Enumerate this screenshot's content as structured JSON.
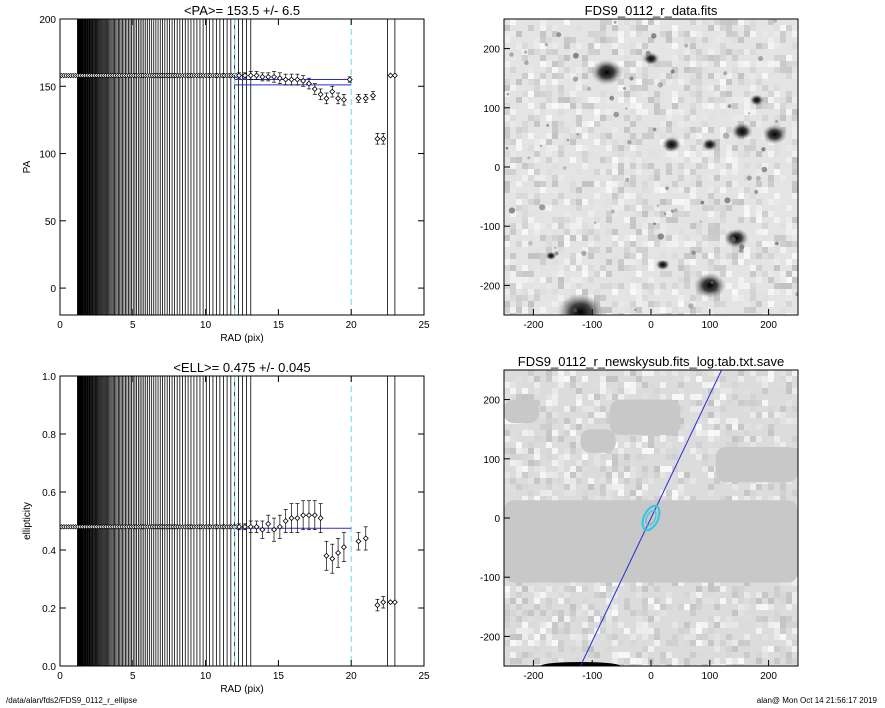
{
  "chart_data": [
    {
      "type": "scatter",
      "title": "<PA>= 153.5 +/-   6.5",
      "xlabel": "RAD (pix)",
      "ylabel": "PA",
      "xlim": [
        0,
        25
      ],
      "ylim": [
        -20,
        200
      ],
      "xticks": [
        "0",
        "5",
        "10",
        "15",
        "20",
        "25"
      ],
      "yticks": [
        "0",
        "50",
        "100",
        "150",
        "200"
      ],
      "vlines_dashed_cyan": [
        12.0,
        20.0
      ],
      "vlines_solid": [
        22.5,
        23.0
      ],
      "fit_line": {
        "x": [
          12.0,
          20.0
        ],
        "y": [
          155,
          155
        ]
      },
      "series": [
        {
          "x": [
            12.3,
            12.7,
            13.1,
            13.5,
            13.9,
            14.3,
            14.7,
            15.1,
            15.5,
            15.9,
            16.3,
            16.7,
            17.1,
            17.5,
            17.9,
            18.3,
            18.7,
            19.1,
            19.5,
            19.9,
            20.5,
            21.0,
            21.5,
            21.8,
            22.2,
            22.7,
            23.0
          ],
          "y": [
            158,
            158,
            158,
            158,
            157,
            157,
            157,
            156,
            155,
            155,
            155,
            154,
            152,
            148,
            144,
            141,
            146,
            141,
            140,
            155,
            141,
            141,
            143,
            111,
            111,
            158,
            158
          ],
          "err": [
            2,
            2,
            3,
            3,
            3,
            3,
            4,
            4,
            4,
            4,
            4,
            4,
            4,
            4,
            4,
            4,
            4,
            4,
            4,
            2,
            3,
            3,
            3,
            4,
            4,
            0,
            0
          ]
        }
      ]
    },
    {
      "type": "scatter",
      "title": "<ELL>= 0.475 +/-  0.045",
      "xlabel": "RAD (pix)",
      "ylabel": "ellipticity",
      "xlim": [
        0,
        25
      ],
      "ylim": [
        0.0,
        1.0
      ],
      "xticks": [
        "0",
        "5",
        "10",
        "15",
        "20",
        "25"
      ],
      "yticks": [
        "0.0",
        "0.2",
        "0.4",
        "0.6",
        "0.8",
        "1.0"
      ],
      "vlines_dashed_cyan": [
        12.0,
        20.0
      ],
      "vlines_solid": [
        22.5,
        23.0
      ],
      "fit_line": {
        "x": [
          12.0,
          20.0
        ],
        "y": [
          0.475,
          0.475
        ]
      },
      "series": [
        {
          "x": [
            12.3,
            12.7,
            13.1,
            13.5,
            13.9,
            14.3,
            14.7,
            15.1,
            15.5,
            15.9,
            16.3,
            16.7,
            17.1,
            17.5,
            17.9,
            18.3,
            18.7,
            19.1,
            19.5,
            20.5,
            21.0,
            21.8,
            22.2,
            22.7,
            23.0
          ],
          "y": [
            0.48,
            0.48,
            0.48,
            0.48,
            0.47,
            0.49,
            0.47,
            0.48,
            0.5,
            0.51,
            0.51,
            0.52,
            0.52,
            0.52,
            0.51,
            0.38,
            0.37,
            0.39,
            0.41,
            0.43,
            0.44,
            0.21,
            0.22,
            0.22,
            0.22
          ],
          "err": [
            0.01,
            0.01,
            0.02,
            0.02,
            0.03,
            0.03,
            0.04,
            0.04,
            0.04,
            0.05,
            0.05,
            0.05,
            0.05,
            0.05,
            0.05,
            0.05,
            0.05,
            0.05,
            0.05,
            0.03,
            0.04,
            0.02,
            0.02,
            0.0,
            0.0
          ]
        }
      ]
    },
    {
      "type": "heatmap",
      "title": "FDS9_0112_r_data.fits",
      "xlim": [
        -250,
        250
      ],
      "ylim": [
        -250,
        250
      ],
      "xticks": [
        "-200",
        "-100",
        "0",
        "100",
        "200"
      ],
      "yticks": [
        "-200",
        "-100",
        "0",
        "100",
        "200"
      ],
      "colormap": "grayscale",
      "sources": [
        {
          "x": -75,
          "y": 160,
          "r": 18
        },
        {
          "x": 0,
          "y": 183,
          "r": 9
        },
        {
          "x": 180,
          "y": 113,
          "r": 8
        },
        {
          "x": 35,
          "y": 38,
          "r": 11
        },
        {
          "x": 100,
          "y": 38,
          "r": 9
        },
        {
          "x": 155,
          "y": 60,
          "r": 12
        },
        {
          "x": 210,
          "y": 55,
          "r": 14
        },
        {
          "x": 145,
          "y": -120,
          "r": 14
        },
        {
          "x": 100,
          "y": -200,
          "r": 18
        },
        {
          "x": 20,
          "y": -165,
          "r": 8
        },
        {
          "x": -170,
          "y": -150,
          "r": 6
        },
        {
          "x": -120,
          "y": -245,
          "r": 26
        }
      ]
    },
    {
      "type": "heatmap",
      "title": "FDS9_0112_r_newskysub.fits_log.tab.txt.save",
      "xlim": [
        -250,
        250
      ],
      "ylim": [
        -250,
        250
      ],
      "xticks": [
        "-200",
        "-100",
        "0",
        "100",
        "200"
      ],
      "yticks": [
        "-200",
        "-100",
        "0",
        "100",
        "200"
      ],
      "colormap": "grayscale",
      "pa_line": {
        "x": [
          -120,
          120
        ],
        "y": [
          -250,
          250
        ]
      },
      "ellipse": {
        "x": 0,
        "y": 0,
        "semi_major": 22,
        "semi_minor": 12
      }
    }
  ],
  "footer": {
    "left": "/data/alan/fds2/FDS9_0112_r_ellipse",
    "right": "alan@  Mon Oct 14 21:56:17 2019"
  }
}
